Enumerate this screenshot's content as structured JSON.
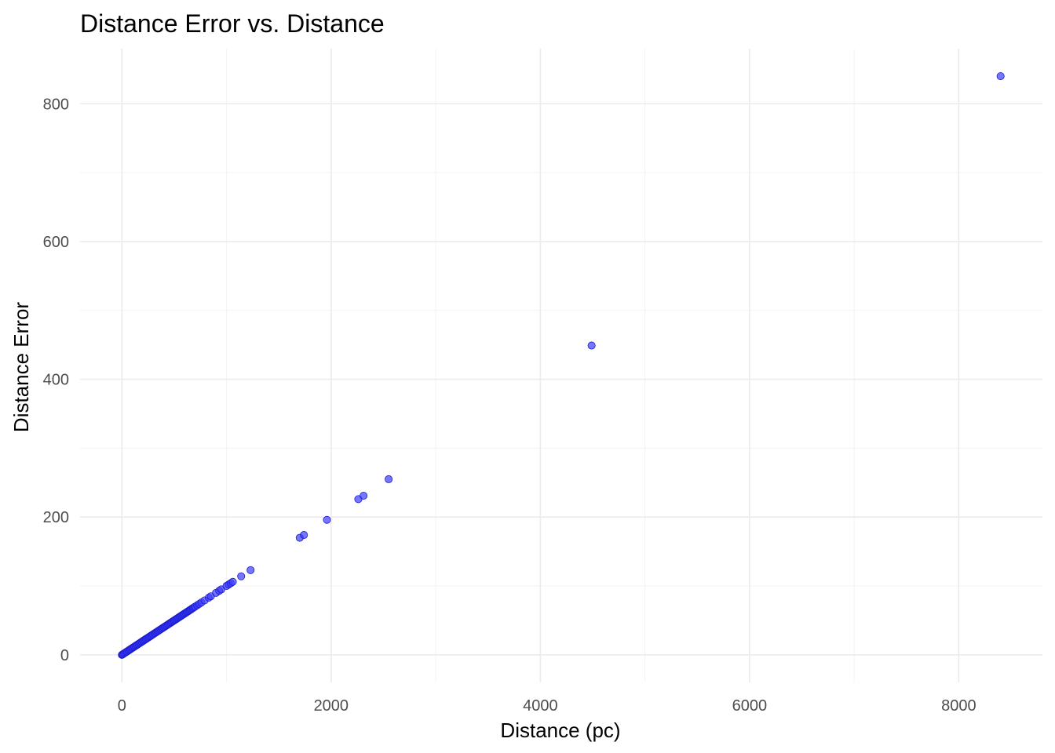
{
  "chart_data": {
    "type": "scatter",
    "title": "Distance Error vs. Distance",
    "xlabel": "Distance (pc)",
    "ylabel": "Distance Error",
    "xlim": [
      -400,
      8800
    ],
    "ylim": [
      -40,
      880
    ],
    "x_ticks": [
      0,
      2000,
      4000,
      6000,
      8000
    ],
    "x_tick_labels": [
      "0",
      "2000",
      "4000",
      "6000",
      "8000"
    ],
    "y_ticks": [
      0,
      200,
      400,
      600,
      800
    ],
    "y_tick_labels": [
      "0",
      "200",
      "400",
      "600",
      "800"
    ],
    "grid": true,
    "point_color": "#0000ff",
    "points": [
      [
        0,
        0
      ],
      [
        5,
        0.5
      ],
      [
        10,
        1
      ],
      [
        20,
        2
      ],
      [
        30,
        3
      ],
      [
        40,
        4
      ],
      [
        50,
        5
      ],
      [
        60,
        6
      ],
      [
        70,
        7
      ],
      [
        80,
        8
      ],
      [
        90,
        9
      ],
      [
        100,
        10
      ],
      [
        110,
        11
      ],
      [
        120,
        12
      ],
      [
        130,
        13
      ],
      [
        140,
        14
      ],
      [
        150,
        15
      ],
      [
        160,
        16
      ],
      [
        170,
        17
      ],
      [
        180,
        18
      ],
      [
        190,
        19
      ],
      [
        200,
        20
      ],
      [
        210,
        21
      ],
      [
        220,
        22
      ],
      [
        230,
        23
      ],
      [
        240,
        24
      ],
      [
        250,
        25
      ],
      [
        260,
        26
      ],
      [
        270,
        27
      ],
      [
        280,
        28
      ],
      [
        290,
        29
      ],
      [
        300,
        30
      ],
      [
        310,
        31
      ],
      [
        320,
        32
      ],
      [
        330,
        33
      ],
      [
        340,
        34
      ],
      [
        350,
        35
      ],
      [
        360,
        36
      ],
      [
        370,
        37
      ],
      [
        380,
        38
      ],
      [
        390,
        39
      ],
      [
        400,
        40
      ],
      [
        410,
        41
      ],
      [
        420,
        42
      ],
      [
        430,
        43
      ],
      [
        440,
        44
      ],
      [
        450,
        45
      ],
      [
        460,
        46
      ],
      [
        470,
        47
      ],
      [
        480,
        48
      ],
      [
        490,
        49
      ],
      [
        500,
        50
      ],
      [
        510,
        51
      ],
      [
        520,
        52
      ],
      [
        530,
        53
      ],
      [
        540,
        54
      ],
      [
        550,
        55
      ],
      [
        560,
        56
      ],
      [
        570,
        57
      ],
      [
        580,
        58
      ],
      [
        590,
        59
      ],
      [
        600,
        60
      ],
      [
        610,
        61
      ],
      [
        620,
        62
      ],
      [
        630,
        63
      ],
      [
        640,
        64
      ],
      [
        650,
        65
      ],
      [
        660,
        66
      ],
      [
        670,
        67
      ],
      [
        680,
        68
      ],
      [
        690,
        69
      ],
      [
        700,
        70
      ],
      [
        720,
        72
      ],
      [
        740,
        74
      ],
      [
        760,
        76
      ],
      [
        790,
        79
      ],
      [
        830,
        83
      ],
      [
        850,
        85
      ],
      [
        900,
        90
      ],
      [
        930,
        93
      ],
      [
        950,
        95
      ],
      [
        1000,
        100
      ],
      [
        1020,
        102
      ],
      [
        1040,
        104
      ],
      [
        1060,
        106
      ],
      [
        1140,
        114
      ],
      [
        1230,
        123
      ],
      [
        1700,
        170
      ],
      [
        1740,
        174
      ],
      [
        1960,
        196
      ],
      [
        2260,
        226
      ],
      [
        2310,
        231
      ],
      [
        2550,
        255
      ],
      [
        4490,
        449
      ],
      [
        8400,
        840
      ]
    ]
  }
}
